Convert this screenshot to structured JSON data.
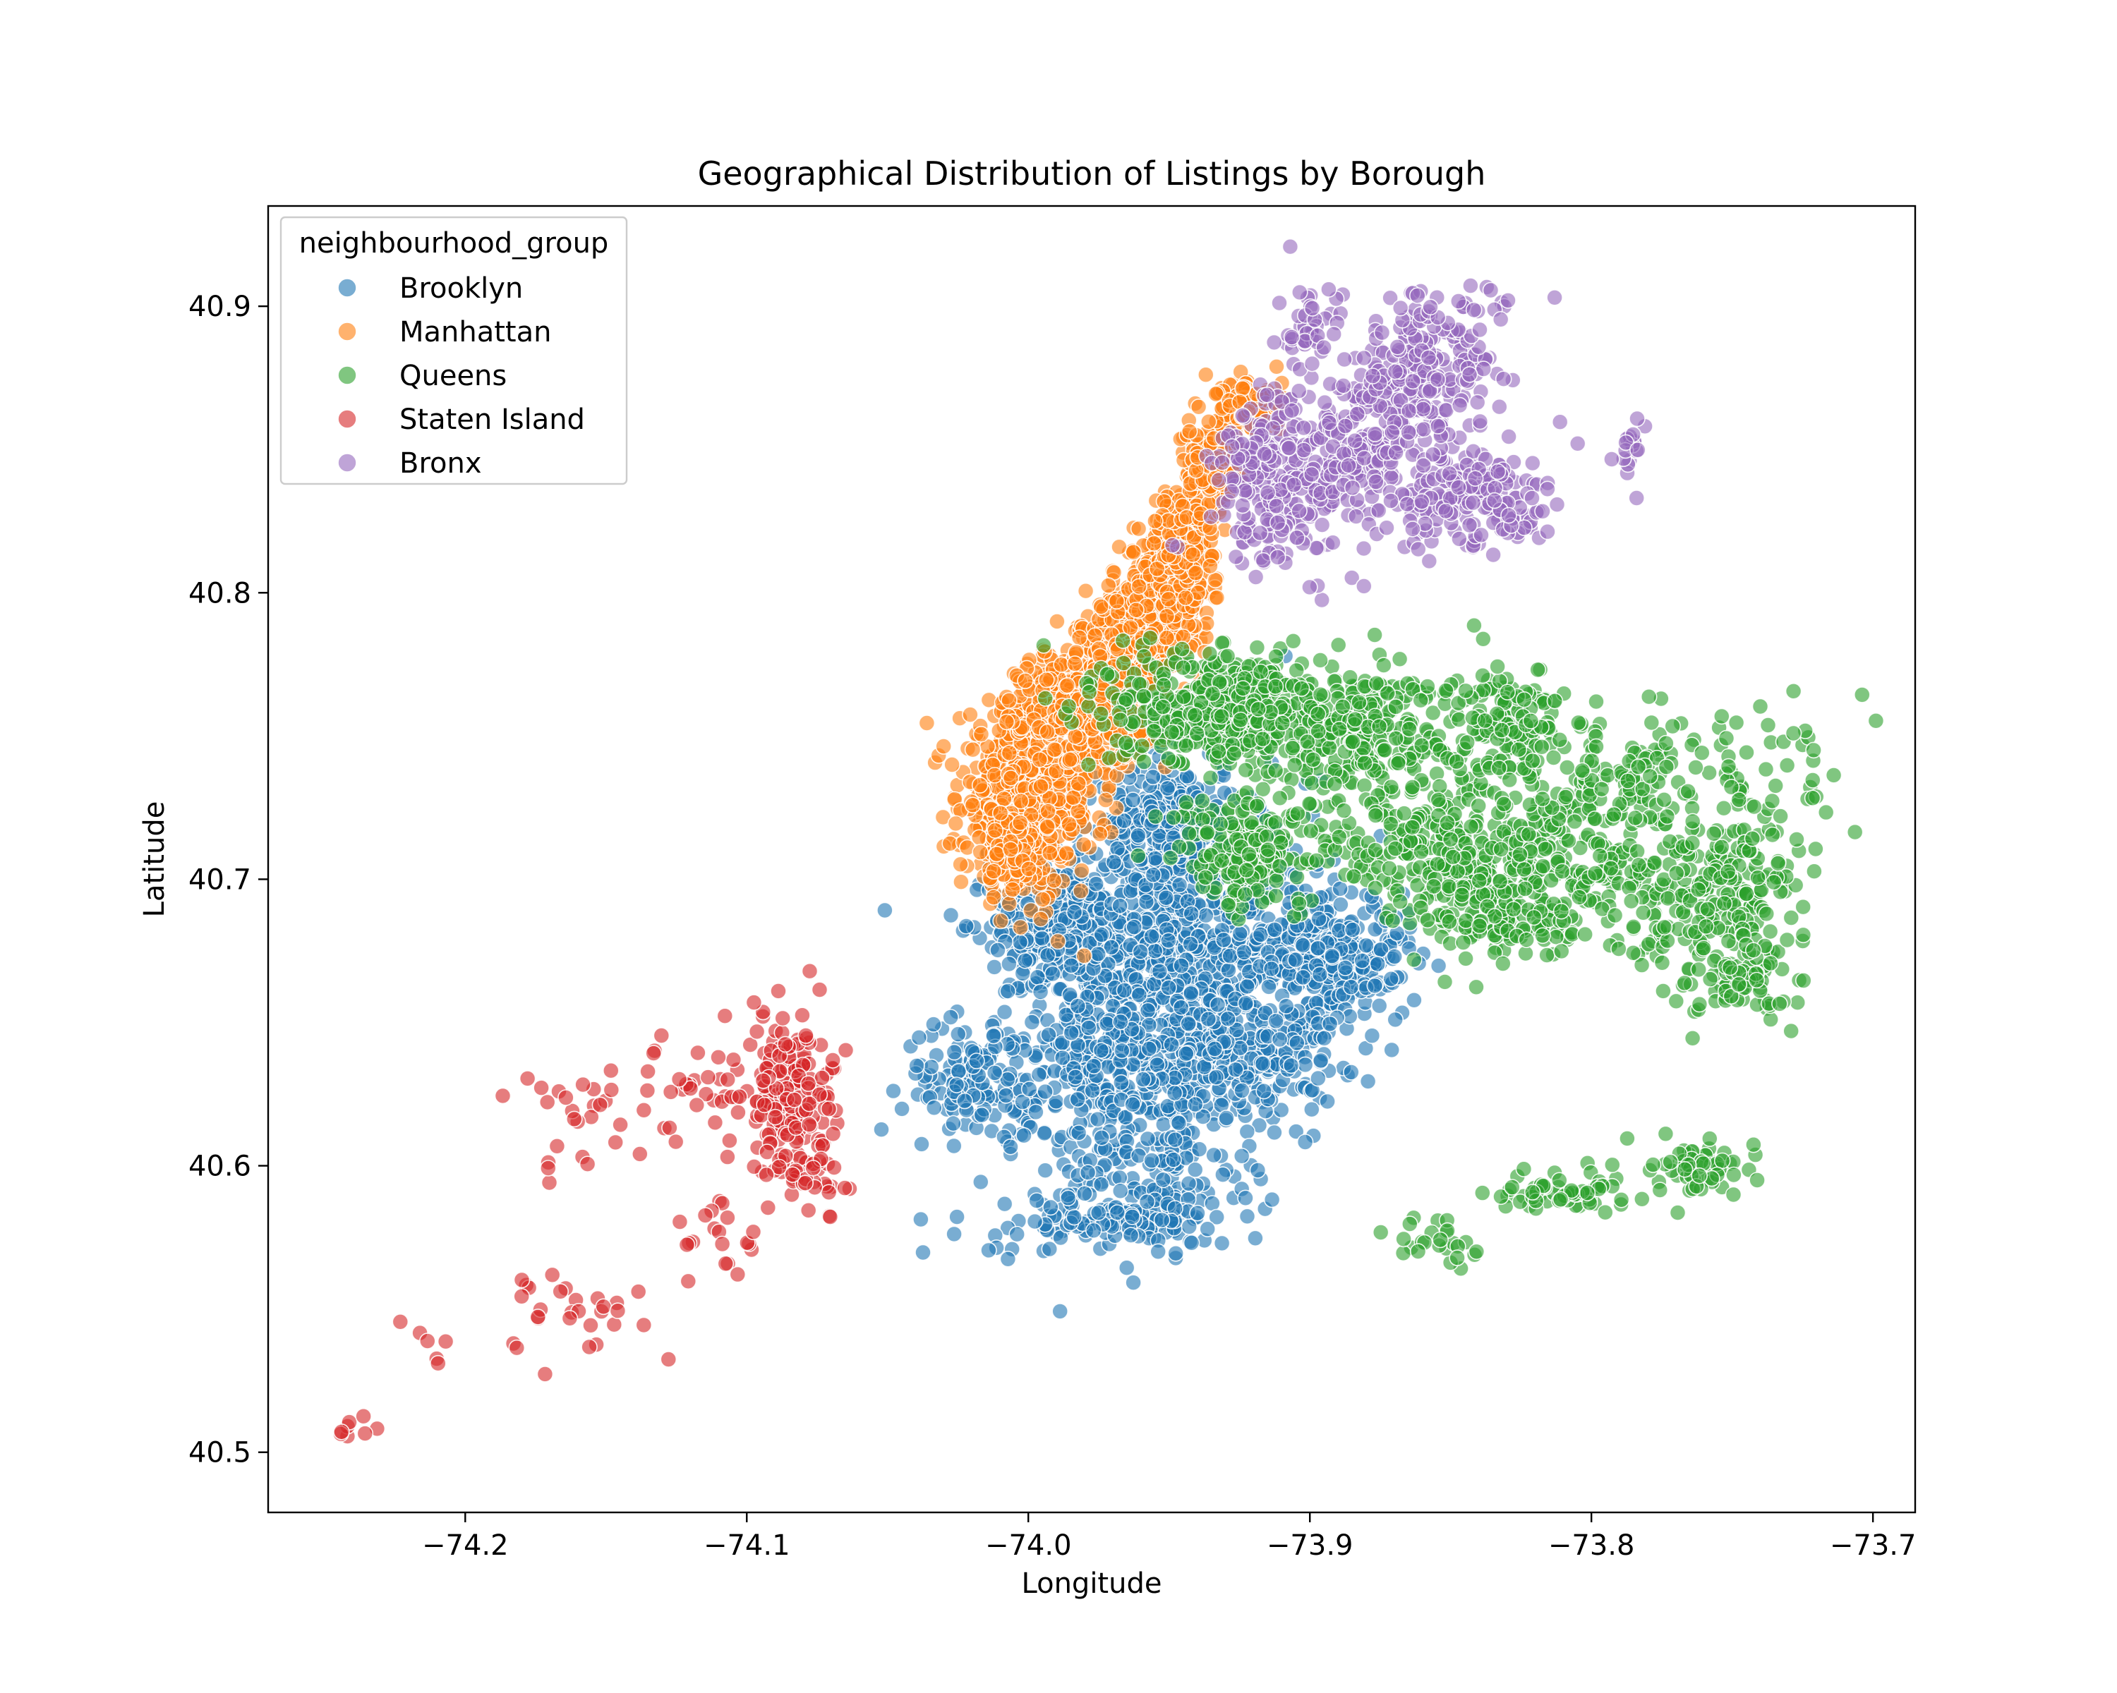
{
  "chart_data": {
    "type": "scatter",
    "title": "Geographical Distribution of Listings by Borough",
    "xlabel": "Longitude",
    "ylabel": "Latitude",
    "xlim": [
      -74.27,
      -73.685
    ],
    "ylim": [
      40.479,
      40.935
    ],
    "x_ticks": [
      -74.2,
      -74.1,
      -74.0,
      -73.9,
      -73.8,
      -73.7
    ],
    "x_tick_labels": [
      "−74.2",
      "−74.1",
      "−74.0",
      "−73.9",
      "−73.8",
      "−73.7"
    ],
    "y_ticks": [
      40.5,
      40.6,
      40.7,
      40.8,
      40.9
    ],
    "y_tick_labels": [
      "40.5",
      "40.6",
      "40.7",
      "40.8",
      "40.9"
    ],
    "grid": false,
    "legend_title": "neighbourhood_group",
    "legend_position": "top-left",
    "marker_opacity": 0.6,
    "series": [
      {
        "name": "Brooklyn",
        "color": "#1f77b4",
        "clusters": [
          {
            "cx": -73.95,
            "cy": 40.675,
            "sx": 0.025,
            "sy": 0.03,
            "n": 900
          },
          {
            "cx": -73.99,
            "cy": 40.685,
            "sx": 0.012,
            "sy": 0.01,
            "n": 240
          },
          {
            "cx": -73.95,
            "cy": 40.72,
            "sx": 0.01,
            "sy": 0.012,
            "n": 220
          },
          {
            "cx": -73.9,
            "cy": 40.675,
            "sx": 0.014,
            "sy": 0.012,
            "n": 180
          },
          {
            "cx": -73.885,
            "cy": 40.67,
            "sx": 0.012,
            "sy": 0.01,
            "n": 130
          },
          {
            "cx": -73.925,
            "cy": 40.64,
            "sx": 0.018,
            "sy": 0.012,
            "n": 220
          },
          {
            "cx": -73.975,
            "cy": 40.635,
            "sx": 0.016,
            "sy": 0.014,
            "n": 200
          },
          {
            "cx": -74.02,
            "cy": 40.63,
            "sx": 0.012,
            "sy": 0.01,
            "n": 120
          },
          {
            "cx": -73.955,
            "cy": 40.6,
            "sx": 0.016,
            "sy": 0.014,
            "n": 150
          },
          {
            "cx": -73.96,
            "cy": 40.58,
            "sx": 0.016,
            "sy": 0.004,
            "n": 90
          },
          {
            "cx": -73.995,
            "cy": 40.58,
            "sx": 0.014,
            "sy": 0.006,
            "n": 45
          }
        ]
      },
      {
        "name": "Manhattan",
        "color": "#ff7f0e",
        "clusters": [
          {
            "cx": -74.0,
            "cy": 40.728,
            "sx": 0.012,
            "sy": 0.016,
            "n": 600
          },
          {
            "cx": -74.008,
            "cy": 40.712,
            "sx": 0.006,
            "sy": 0.006,
            "n": 100
          },
          {
            "cx": -73.98,
            "cy": 40.76,
            "sx": 0.011,
            "sy": 0.01,
            "n": 500
          },
          {
            "cx": -73.965,
            "cy": 40.78,
            "sx": 0.008,
            "sy": 0.01,
            "n": 320
          },
          {
            "cx": -73.95,
            "cy": 40.8,
            "sx": 0.007,
            "sy": 0.01,
            "n": 320
          },
          {
            "cx": -73.945,
            "cy": 40.82,
            "sx": 0.006,
            "sy": 0.008,
            "n": 220
          },
          {
            "cx": -73.935,
            "cy": 40.845,
            "sx": 0.005,
            "sy": 0.008,
            "n": 160
          },
          {
            "cx": -73.922,
            "cy": 40.866,
            "sx": 0.006,
            "sy": 0.005,
            "n": 90
          }
        ]
      },
      {
        "name": "Queens",
        "color": "#2ca02c",
        "clusters": [
          {
            "cx": -73.93,
            "cy": 40.76,
            "sx": 0.02,
            "sy": 0.01,
            "n": 500
          },
          {
            "cx": -73.88,
            "cy": 40.75,
            "sx": 0.016,
            "sy": 0.012,
            "n": 250
          },
          {
            "cx": -73.92,
            "cy": 40.71,
            "sx": 0.014,
            "sy": 0.01,
            "n": 200
          },
          {
            "cx": -73.86,
            "cy": 40.71,
            "sx": 0.014,
            "sy": 0.012,
            "n": 180
          },
          {
            "cx": -73.83,
            "cy": 40.69,
            "sx": 0.015,
            "sy": 0.01,
            "n": 180
          },
          {
            "cx": -73.81,
            "cy": 40.71,
            "sx": 0.015,
            "sy": 0.014,
            "n": 160
          },
          {
            "cx": -73.83,
            "cy": 40.755,
            "sx": 0.01,
            "sy": 0.01,
            "n": 150
          },
          {
            "cx": -73.79,
            "cy": 40.735,
            "sx": 0.012,
            "sy": 0.01,
            "n": 80
          },
          {
            "cx": -73.77,
            "cy": 40.69,
            "sx": 0.014,
            "sy": 0.014,
            "n": 150
          },
          {
            "cx": -73.745,
            "cy": 40.7,
            "sx": 0.01,
            "sy": 0.012,
            "n": 100
          },
          {
            "cx": -73.745,
            "cy": 40.665,
            "sx": 0.01,
            "sy": 0.008,
            "n": 80
          },
          {
            "cx": -73.76,
            "cy": 40.74,
            "sx": 0.012,
            "sy": 0.012,
            "n": 40
          },
          {
            "cx": -73.73,
            "cy": 40.74,
            "sx": 0.01,
            "sy": 0.014,
            "n": 30
          },
          {
            "cx": -73.81,
            "cy": 40.592,
            "sx": 0.012,
            "sy": 0.004,
            "n": 60
          },
          {
            "cx": -73.76,
            "cy": 40.6,
            "sx": 0.01,
            "sy": 0.005,
            "n": 60
          },
          {
            "cx": -73.855,
            "cy": 40.573,
            "sx": 0.007,
            "sy": 0.004,
            "n": 25
          }
        ]
      },
      {
        "name": "Staten Island",
        "color": "#d62728",
        "clusters": [
          {
            "cx": -74.085,
            "cy": 40.63,
            "sx": 0.008,
            "sy": 0.012,
            "n": 140
          },
          {
            "cx": -74.08,
            "cy": 40.6,
            "sx": 0.008,
            "sy": 0.008,
            "n": 60
          },
          {
            "cx": -74.12,
            "cy": 40.625,
            "sx": 0.015,
            "sy": 0.01,
            "n": 40
          },
          {
            "cx": -74.16,
            "cy": 40.62,
            "sx": 0.01,
            "sy": 0.012,
            "n": 20
          },
          {
            "cx": -74.11,
            "cy": 40.58,
            "sx": 0.012,
            "sy": 0.01,
            "n": 20
          },
          {
            "cx": -74.16,
            "cy": 40.55,
            "sx": 0.02,
            "sy": 0.01,
            "n": 30
          },
          {
            "cx": -74.21,
            "cy": 40.535,
            "sx": 0.008,
            "sy": 0.008,
            "n": 6
          },
          {
            "cx": -74.24,
            "cy": 40.507,
            "sx": 0.004,
            "sy": 0.003,
            "n": 8
          }
        ]
      },
      {
        "name": "Bronx",
        "color": "#9467bd",
        "clusters": [
          {
            "cx": -73.91,
            "cy": 40.84,
            "sx": 0.012,
            "sy": 0.015,
            "n": 260
          },
          {
            "cx": -73.88,
            "cy": 40.85,
            "sx": 0.01,
            "sy": 0.012,
            "n": 140
          },
          {
            "cx": -73.86,
            "cy": 40.875,
            "sx": 0.012,
            "sy": 0.012,
            "n": 200
          },
          {
            "cx": -73.85,
            "cy": 40.835,
            "sx": 0.014,
            "sy": 0.01,
            "n": 140
          },
          {
            "cx": -73.83,
            "cy": 40.83,
            "sx": 0.01,
            "sy": 0.008,
            "n": 50
          },
          {
            "cx": -73.9,
            "cy": 40.89,
            "sx": 0.006,
            "sy": 0.008,
            "n": 50
          },
          {
            "cx": -73.85,
            "cy": 40.9,
            "sx": 0.012,
            "sy": 0.004,
            "n": 30
          },
          {
            "cx": -73.785,
            "cy": 40.848,
            "sx": 0.003,
            "sy": 0.006,
            "n": 20
          }
        ]
      }
    ]
  }
}
